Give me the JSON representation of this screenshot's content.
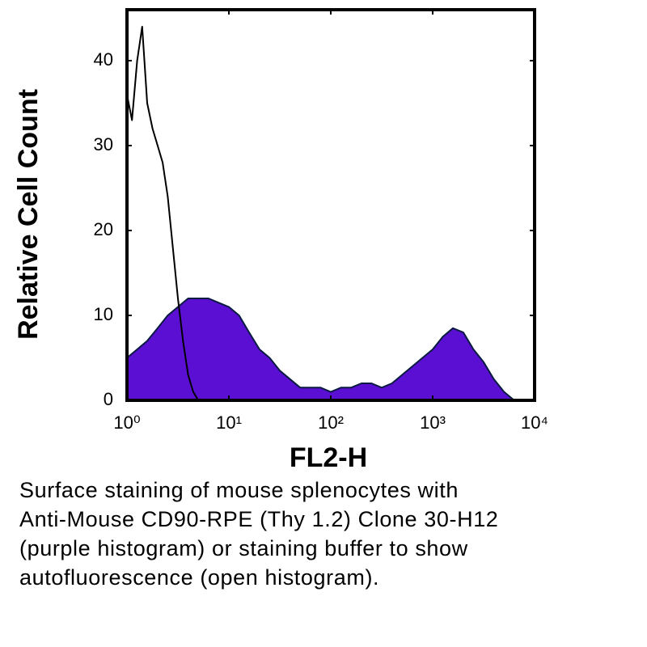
{
  "chart_data": {
    "type": "histogram",
    "y_label": "Relative Cell Count",
    "x_label": "FL2-H",
    "caption": [
      "Surface staining of mouse splenocytes with",
      "Anti-Mouse CD90-RPE (Thy 1.2) Clone 30-H12",
      "(purple histogram) or staining buffer to show",
      "autofluorescence (open histogram)."
    ],
    "x_scale": "log",
    "xlim": [
      1,
      10000
    ],
    "xticks": [
      {
        "value": 1,
        "label": "10⁰"
      },
      {
        "value": 10,
        "label": "10¹"
      },
      {
        "value": 100,
        "label": "10²"
      },
      {
        "value": 1000,
        "label": "10³"
      },
      {
        "value": 10000,
        "label": "10⁴"
      }
    ],
    "ylim": [
      0,
      46
    ],
    "yticks": [
      0,
      10,
      20,
      30,
      40
    ],
    "series": [
      {
        "color": "#5a0fd2",
        "fill": true,
        "x": [
          1,
          1.26,
          1.58,
          2,
          2.51,
          3.16,
          3.98,
          5.01,
          6.31,
          7.94,
          10,
          12.6,
          15.8,
          20,
          25.1,
          31.6,
          39.8,
          50.1,
          63.1,
          79.4,
          100,
          126,
          158,
          200,
          251,
          316,
          398,
          501,
          631,
          794,
          1000,
          1260,
          1580,
          2000,
          2510,
          3160,
          3980,
          5010,
          6310,
          7940,
          10000
        ],
        "values": [
          5,
          6,
          7,
          8.5,
          10,
          11,
          12,
          12,
          12,
          11.5,
          11,
          10,
          8,
          6,
          5,
          3.5,
          2.5,
          1.5,
          1.5,
          1.5,
          1,
          1.5,
          1.5,
          2,
          2,
          1.5,
          2,
          3,
          4,
          5,
          6,
          7.5,
          8.5,
          8,
          6,
          4.5,
          2.5,
          1,
          0,
          0,
          0
        ]
      },
      {
        "color": "#000000",
        "fill": false,
        "x": [
          1,
          1.12,
          1.26,
          1.41,
          1.58,
          1.78,
          2,
          2.24,
          2.51,
          2.82,
          3.16,
          3.55,
          3.98,
          4.47,
          5.01,
          6.31
        ],
        "values": [
          36,
          33,
          40,
          44,
          35,
          32,
          30,
          28,
          24,
          18,
          12,
          7,
          3,
          1,
          0,
          0
        ]
      }
    ]
  }
}
